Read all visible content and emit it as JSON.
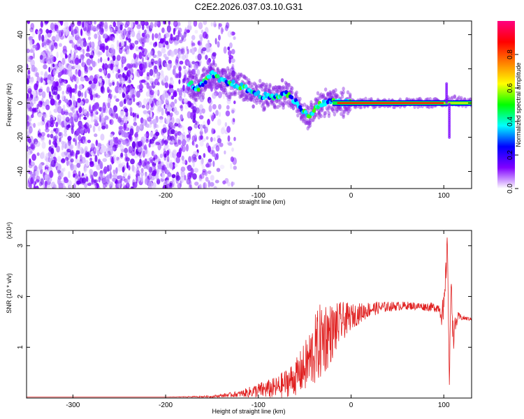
{
  "title": "C2E2.2026.037.03.10.G31",
  "charts": [
    {
      "chart_data": {
        "type": "heatmap",
        "xlabel": "Height of straight line (km)",
        "ylabel": "Frequency (Hz)",
        "xlim": [
          -350,
          130
        ],
        "ylim": [
          -50,
          48
        ],
        "xticks": [
          -300,
          -200,
          -100,
          0,
          100
        ],
        "yticks": [
          -40,
          -20,
          0,
          20,
          40
        ],
        "track": {
          "x": [
            -175,
            -165,
            -150,
            -140,
            -120,
            -100,
            -85,
            -70,
            -55,
            -45,
            -40,
            -30,
            -20,
            -10,
            0,
            20,
            50,
            80,
            100,
            105,
            130
          ],
          "y": [
            12,
            8,
            17,
            13,
            10,
            5,
            3,
            6,
            -2,
            -9,
            -3,
            0,
            1,
            0,
            0,
            0,
            0,
            0,
            0,
            2,
            0
          ]
        },
        "noise_region_x": [
          -350,
          -125
        ],
        "colorbar": {
          "label": "Normalized spectral amplitude",
          "range": [
            0,
            1
          ],
          "ticks": [
            "0.0",
            "0.2",
            "0.4",
            "0.6",
            "0.8"
          ],
          "colors": [
            "#ffffff",
            "#8000ff",
            "#0000ff",
            "#00ffff",
            "#00ff00",
            "#ffff00",
            "#ff8000",
            "#ff0000",
            "#ff0080"
          ]
        }
      }
    },
    {
      "chart_data": {
        "type": "line",
        "xlabel": "Height of straight line (km)",
        "ylabel": "SNR (10 * v/v)",
        "yscale_label": "(x10⁴)",
        "xlim": [
          -350,
          130
        ],
        "ylim": [
          0,
          3.3
        ],
        "xticks": [
          -300,
          -200,
          -100,
          0,
          100
        ],
        "yticks": [
          1,
          2,
          3
        ],
        "series": [
          {
            "color": "#e02020",
            "x": [
              -350,
              -300,
              -250,
              -200,
              -150,
              -120,
              -100,
              -80,
              -60,
              -50,
              -40,
              -30,
              -20,
              -10,
              0,
              20,
              40,
              60,
              80,
              95,
              100,
              104,
              106,
              108,
              110,
              115,
              120,
              130
            ],
            "y": [
              0.02,
              0.02,
              0.02,
              0.02,
              0.03,
              0.08,
              0.15,
              0.2,
              0.4,
              0.6,
              0.9,
              1.2,
              1.3,
              1.5,
              1.6,
              1.75,
              1.8,
              1.82,
              1.8,
              1.78,
              1.6,
              3.1,
              0.2,
              2.5,
              1.2,
              1.6,
              1.58,
              1.55
            ],
            "noise": [
              0,
              0,
              0,
              0,
              0.02,
              0.06,
              0.15,
              0.22,
              0.35,
              0.5,
              0.7,
              0.8,
              0.55,
              0.4,
              0.25,
              0.15,
              0.1,
              0.08,
              0.08,
              0.1,
              0.4,
              0.2,
              0.1,
              0.3,
              0.3,
              0.1,
              0.05,
              0.03
            ]
          }
        ]
      }
    }
  ]
}
